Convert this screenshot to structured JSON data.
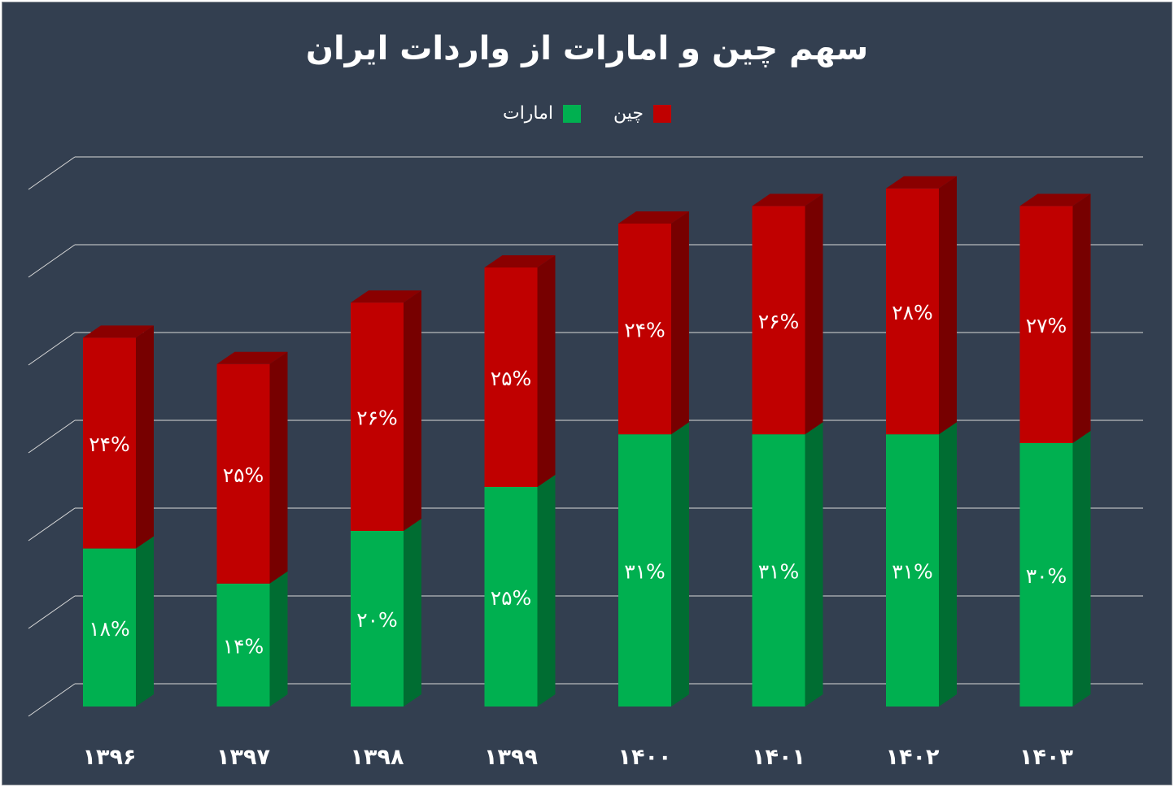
{
  "chart_data": {
    "type": "bar",
    "stacked": true,
    "title": "سهم چین و امارات از واردات ایران",
    "categories": [
      "۱۳۹۶",
      "۱۳۹۷",
      "۱۳۹۸",
      "۱۳۹۹",
      "۱۴۰۰",
      "۱۴۰۱",
      "۱۴۰۲",
      "۱۴۰۳"
    ],
    "series": [
      {
        "name": "امارات",
        "color": "#00b050",
        "values": [
          18,
          14,
          20,
          25,
          31,
          31,
          31,
          30
        ],
        "labels": [
          "۱۸%",
          "۱۴%",
          "۲۰%",
          "۲۵%",
          "۳۱%",
          "۳۱%",
          "۳۱%",
          "۳۰%"
        ]
      },
      {
        "name": "چین",
        "color": "#c00000",
        "values": [
          24,
          25,
          26,
          25,
          24,
          26,
          28,
          27
        ],
        "labels": [
          "۲۴%",
          "۲۵%",
          "۲۶%",
          "۲۵%",
          "۲۴%",
          "۲۶%",
          "۲۸%",
          "۲۷%"
        ]
      }
    ],
    "ylim": [
      0,
      60
    ],
    "grid": true,
    "legend_position": "top"
  }
}
